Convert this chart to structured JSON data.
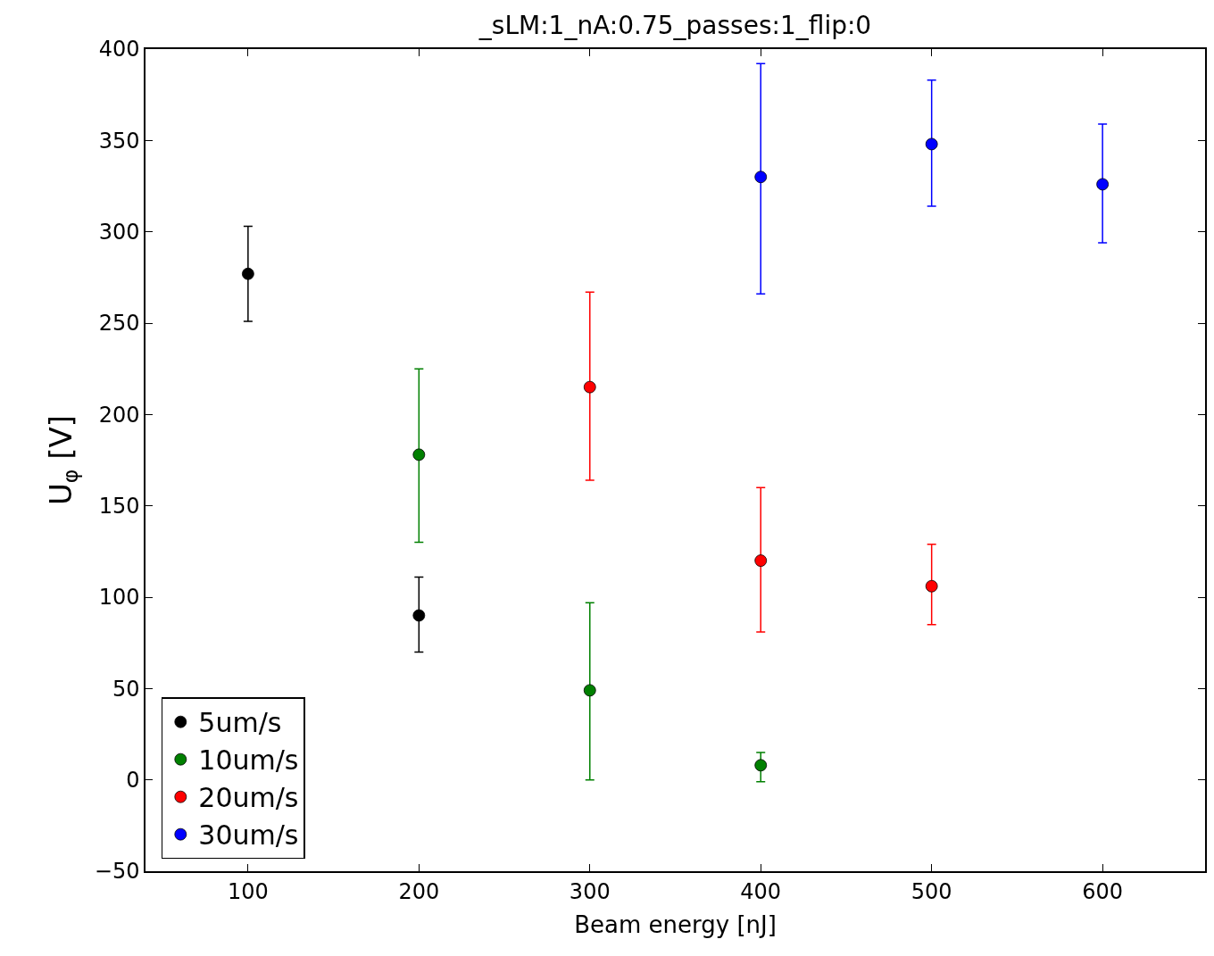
{
  "chart_data": {
    "type": "scatter",
    "title": "_sLM:1_nA:0.75_passes:1_flip:0",
    "xlabel": "Beam energy [nJ]",
    "ylabel": "U$_{φ}$ [V]",
    "series": [
      {
        "name": "5um/s",
        "color": "#000000",
        "x": [
          100,
          200
        ],
        "values": [
          277,
          90
        ],
        "errors": [
          [
            251,
            303
          ],
          [
            70,
            111
          ]
        ]
      },
      {
        "name": "10um/s",
        "color": "#008000",
        "x": [
          200,
          300,
          400
        ],
        "values": [
          178,
          49,
          8
        ],
        "errors": [
          [
            130,
            225
          ],
          [
            0,
            97
          ],
          [
            -1,
            15
          ]
        ]
      },
      {
        "name": "20um/s",
        "color": "#ff0000",
        "x": [
          300,
          400,
          500
        ],
        "values": [
          215,
          120,
          106
        ],
        "errors": [
          [
            164,
            267
          ],
          [
            81,
            160
          ],
          [
            85,
            129
          ]
        ]
      },
      {
        "name": "30um/s",
        "color": "#0000ff",
        "x": [
          400,
          500,
          600
        ],
        "values": [
          330,
          348,
          326
        ],
        "errors": [
          [
            266,
            392
          ],
          [
            314,
            383
          ],
          [
            294,
            359
          ]
        ]
      }
    ],
    "xlim": [
      40,
      660
    ],
    "xticks": [
      100,
      200,
      300,
      400,
      500,
      600
    ],
    "ylim": [
      -50,
      400
    ],
    "yticks": [
      -50,
      0,
      50,
      100,
      150,
      200,
      250,
      300,
      350,
      400
    ],
    "legend": "bottom left",
    "marker": "circle"
  }
}
